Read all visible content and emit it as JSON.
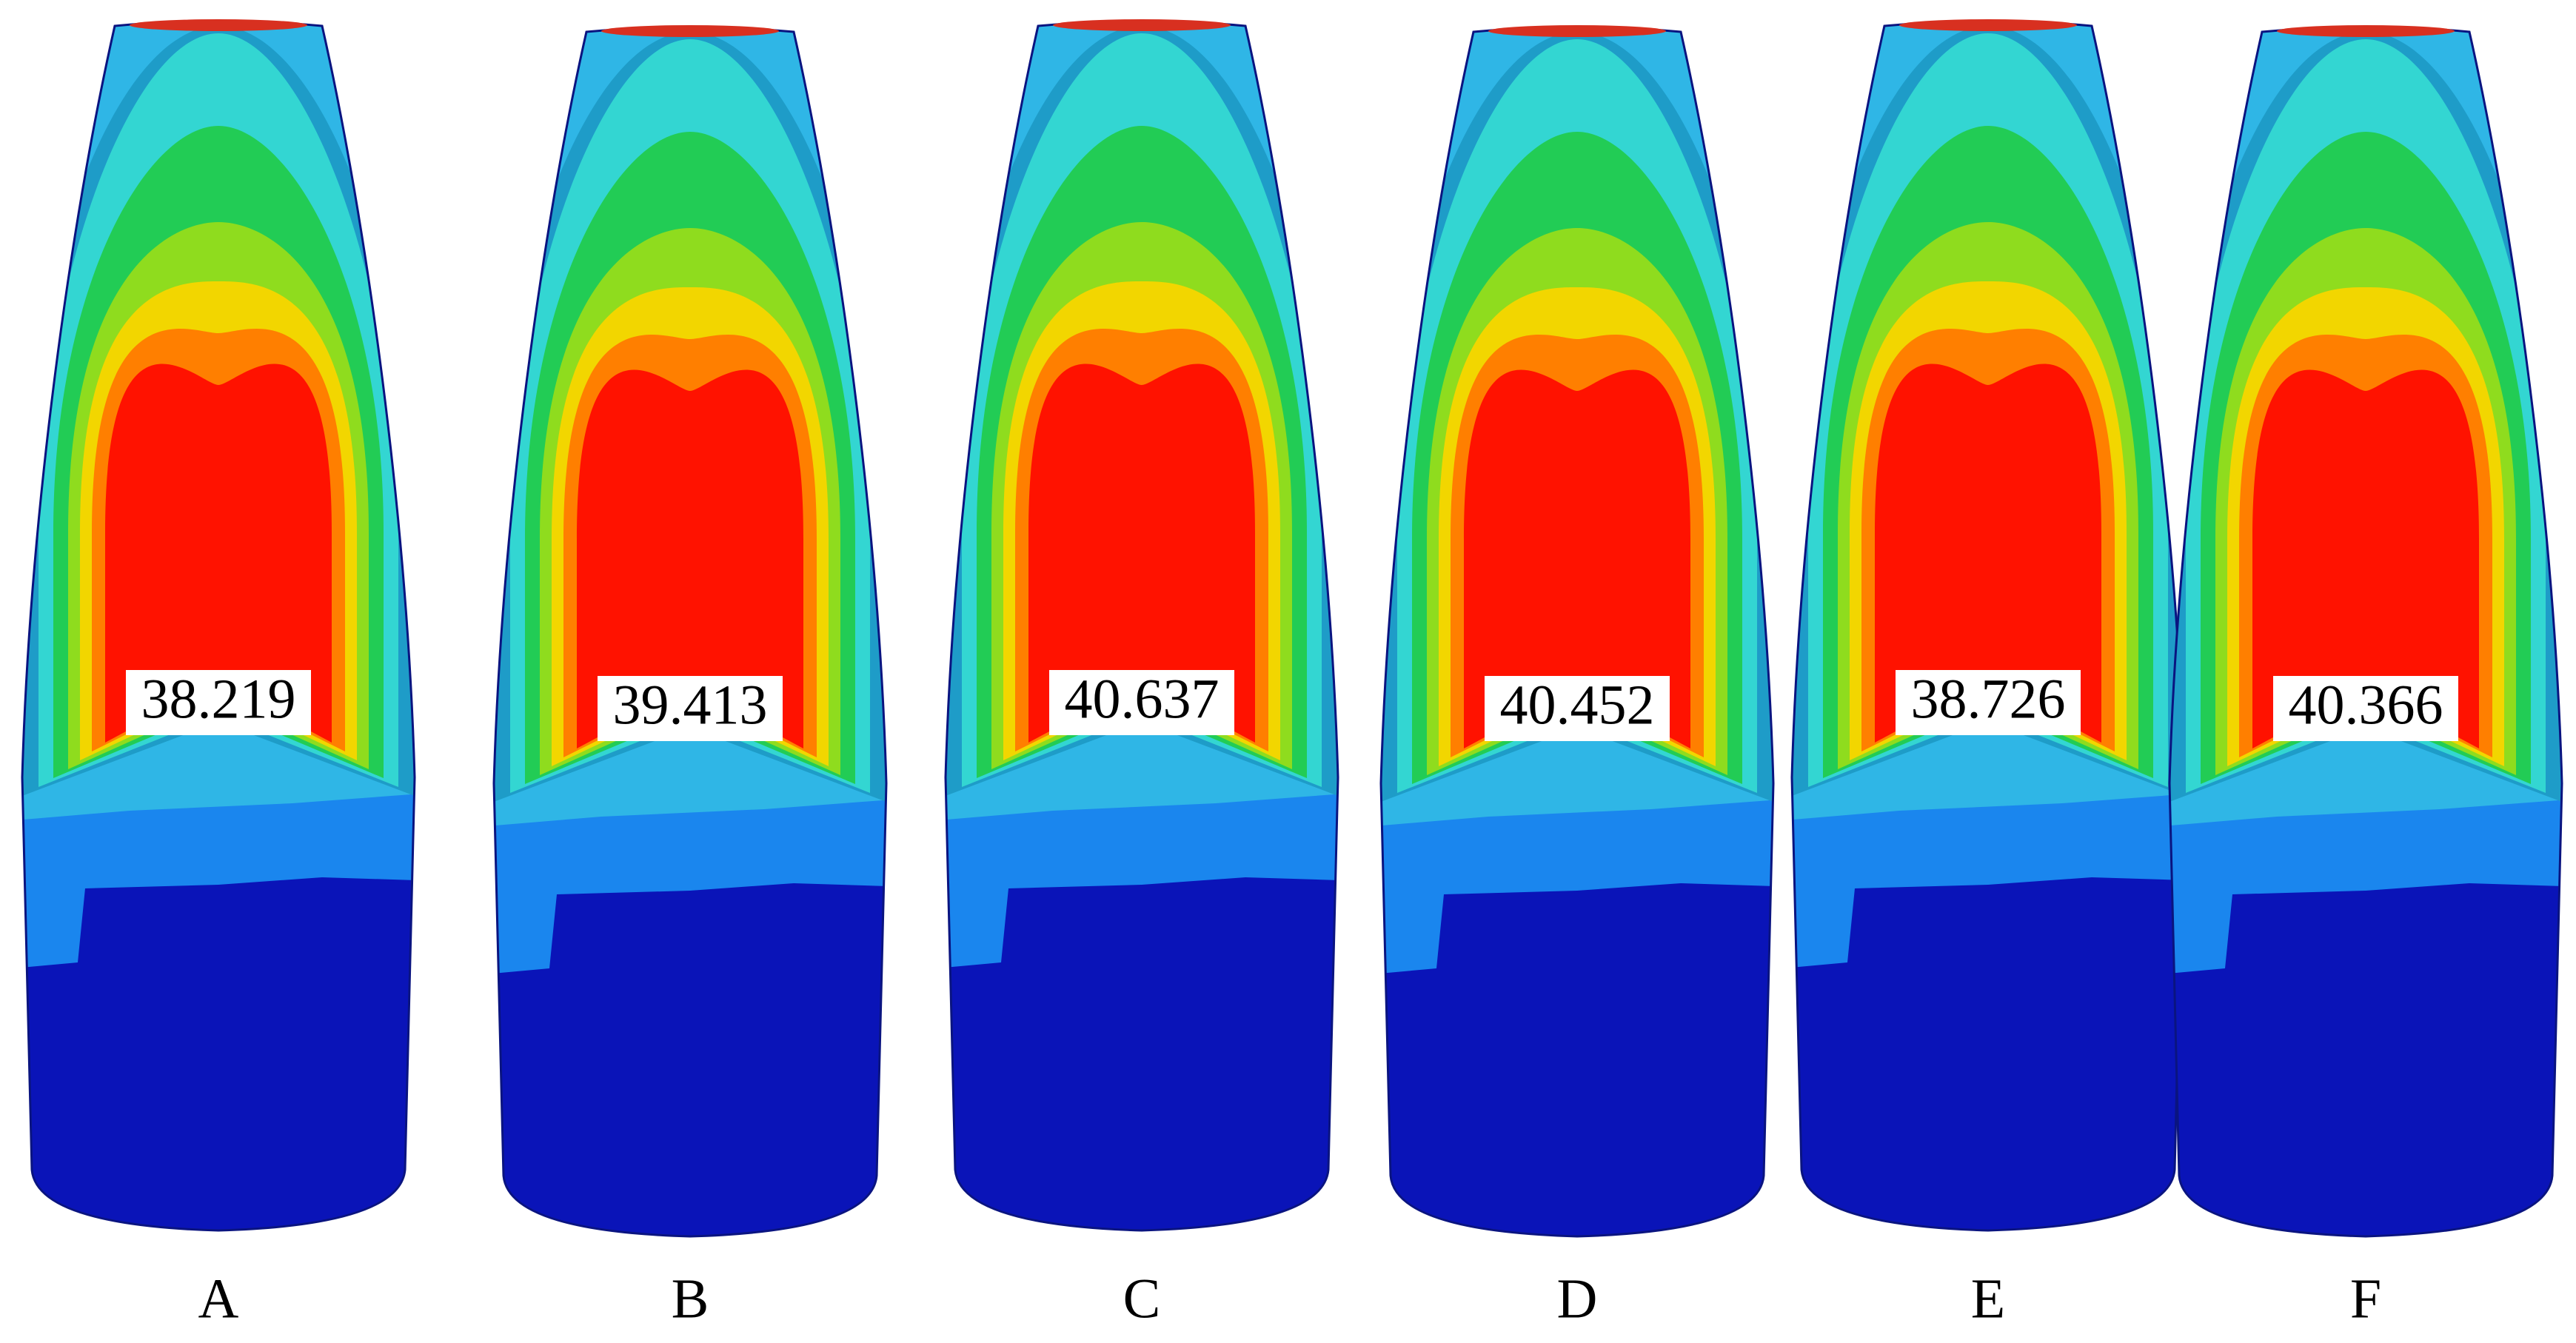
{
  "panels": [
    {
      "label": "A",
      "value": "38.219"
    },
    {
      "label": "B",
      "value": "39.413"
    },
    {
      "label": "C",
      "value": "40.637"
    },
    {
      "label": "D",
      "value": "40.452"
    },
    {
      "label": "E",
      "value": "38.726"
    },
    {
      "label": "F",
      "value": "40.366"
    }
  ]
}
